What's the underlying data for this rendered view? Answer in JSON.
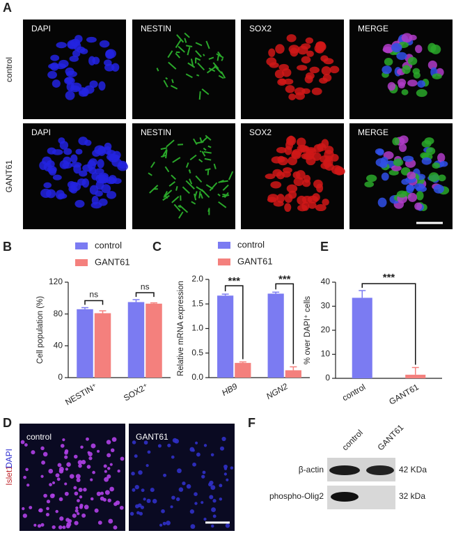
{
  "panel_a": {
    "label": "A",
    "rows": [
      "control",
      "GANT61"
    ],
    "columns": [
      "DAPI",
      "NESTIN",
      "SOX2",
      "MERGE"
    ]
  },
  "panel_d": {
    "label": "D",
    "images": [
      "control",
      "GANT61"
    ],
    "stain_red": "Islet1",
    "stain_blue": "DAPI"
  },
  "panel_f": {
    "label": "F",
    "columns": [
      "control",
      "GANT61"
    ],
    "rows": [
      "β-actin",
      "phospho-Olig2"
    ],
    "sizes": [
      "42 KDa",
      "32 kDa"
    ]
  },
  "chart_data": [
    {
      "type": "bar",
      "label": "B",
      "ylabel": "Cell population (%)",
      "categories": [
        "NESTIN⁺",
        "SOX2⁺"
      ],
      "series": [
        {
          "name": "control",
          "color": "#7b7bf2",
          "values": [
            86,
            95
          ],
          "errors": [
            2,
            3
          ]
        },
        {
          "name": "GANT61",
          "color": "#f4807d",
          "values": [
            81,
            93
          ],
          "errors": [
            3,
            1
          ]
        }
      ],
      "ylim": [
        0,
        120
      ],
      "yticks": [
        0,
        40,
        80,
        120
      ],
      "annotations": [
        "ns",
        "ns"
      ]
    },
    {
      "type": "bar",
      "label": "C",
      "ylabel": "Relative mRNA expression",
      "categories": [
        "HB9",
        "NGN2"
      ],
      "series": [
        {
          "name": "control",
          "color": "#7b7bf2",
          "values": [
            1.67,
            1.71
          ],
          "errors": [
            0.03,
            0.03
          ]
        },
        {
          "name": "GANT61",
          "color": "#f4807d",
          "values": [
            0.3,
            0.15
          ],
          "errors": [
            0.02,
            0.07
          ]
        }
      ],
      "ylim": [
        0,
        2
      ],
      "yticks": [
        {
          "value": 0,
          "label": "0.0"
        },
        0.5,
        {
          "value": 1,
          "label": "1.0"
        },
        1.5,
        {
          "value": 2,
          "label": "2.0"
        }
      ],
      "annotations": [
        "***",
        "***"
      ]
    },
    {
      "type": "bar",
      "label": "E",
      "ylabel": "% over DAPI⁺ cells",
      "categories": [
        "control",
        "GANT61"
      ],
      "series": [
        {
          "colors": [
            "#7b7bf2",
            "#f4807d"
          ],
          "values": [
            33.5,
            1.5
          ],
          "errors": [
            3,
            3
          ]
        }
      ],
      "ylim": [
        0,
        40
      ],
      "yticks": [
        0,
        10,
        20,
        30,
        40
      ],
      "annotations": [
        "***"
      ]
    }
  ]
}
